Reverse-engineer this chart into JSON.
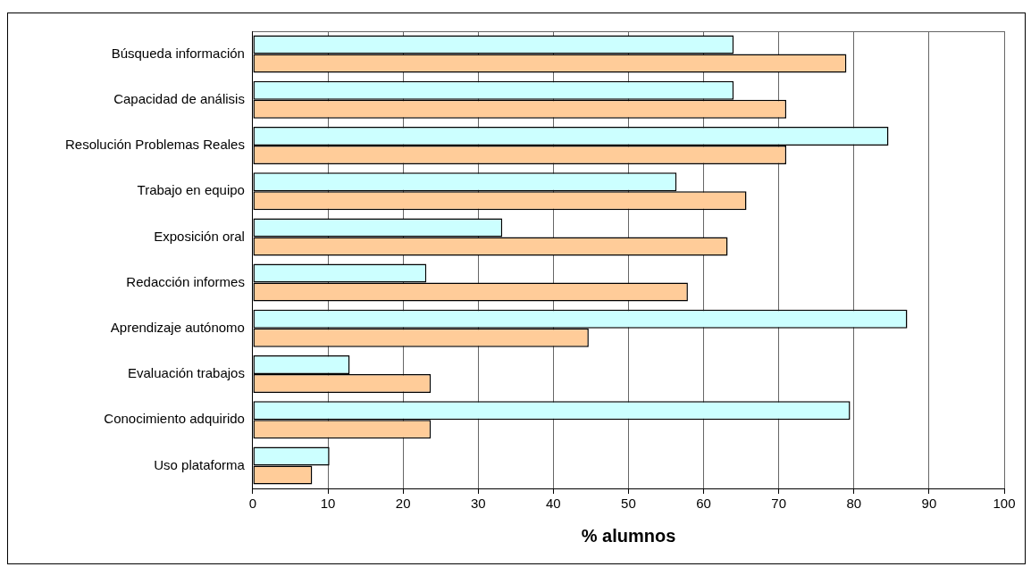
{
  "chart_data": {
    "type": "bar",
    "orientation": "horizontal",
    "xlabel": "% alumnos",
    "categories": [
      "Búsqueda información",
      "Capacidad de análisis",
      "Resolución Problemas Reales",
      "Trabajo en equipo",
      "Exposición oral",
      "Redacción informes",
      "Aprendizaje autónomo",
      "Evaluación trabajos",
      "Conocimiento adquirido",
      "Uso plataforma"
    ],
    "series": [
      {
        "color": "#ccffff",
        "values": [
          64.0,
          64.0,
          84.6,
          56.4,
          33.2,
          23.1,
          87.1,
          12.9,
          79.5,
          10.2
        ]
      },
      {
        "color": "#ffcc99",
        "values": [
          79.0,
          71.0,
          71.0,
          65.7,
          63.2,
          57.9,
          44.7,
          23.7,
          23.7,
          7.9
        ]
      }
    ],
    "xlim": [
      0,
      100
    ],
    "xticks": [
      0,
      10,
      20,
      30,
      40,
      50,
      60,
      70,
      80,
      90,
      100
    ],
    "grid": "x",
    "legend": false
  }
}
